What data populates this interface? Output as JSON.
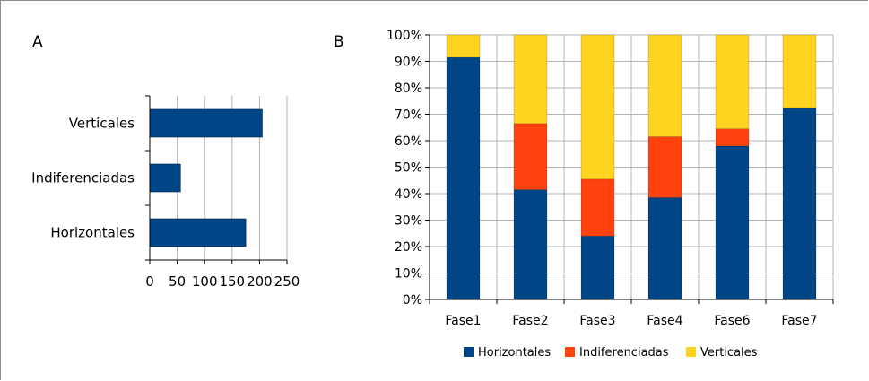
{
  "colors": {
    "horizontales": "#004586",
    "indiferenciadas": "#ff420e",
    "verticales": "#ffd320",
    "grid": "#b3b3b3",
    "axis": "#000000"
  },
  "chart_data": [
    {
      "id": "A",
      "panel_label": "A",
      "type": "bar",
      "orientation": "horizontal",
      "categories": [
        "Verticales",
        "Indiferenciadas",
        "Horizontales"
      ],
      "values": [
        205,
        56,
        175
      ],
      "xlim": [
        0,
        250
      ],
      "xticks": [
        "0",
        "50",
        "100",
        "150",
        "200",
        "250"
      ],
      "grid": "vertical",
      "color": "#004586"
    },
    {
      "id": "B",
      "panel_label": "B",
      "type": "bar",
      "stacked": true,
      "categories": [
        "Fase1",
        "Fase2",
        "Fase3",
        "Fase4",
        "Fase6",
        "Fase7"
      ],
      "series": [
        {
          "name": "Horizontales",
          "values": [
            91.5,
            41.5,
            24,
            38.5,
            58,
            72.5
          ],
          "color": "#004586"
        },
        {
          "name": "Indiferenciadas",
          "values": [
            0,
            25,
            21.5,
            23,
            6.5,
            0
          ],
          "color": "#ff420e"
        },
        {
          "name": "Verticales",
          "values": [
            8.5,
            33.5,
            54.5,
            38.5,
            35.5,
            27.5
          ],
          "color": "#ffd320"
        }
      ],
      "ylim": [
        0,
        100
      ],
      "yticks": [
        "0%",
        "10%",
        "20%",
        "30%",
        "40%",
        "50%",
        "60%",
        "70%",
        "80%",
        "90%",
        "100%"
      ],
      "grid": "both",
      "legend": "bottom"
    }
  ]
}
